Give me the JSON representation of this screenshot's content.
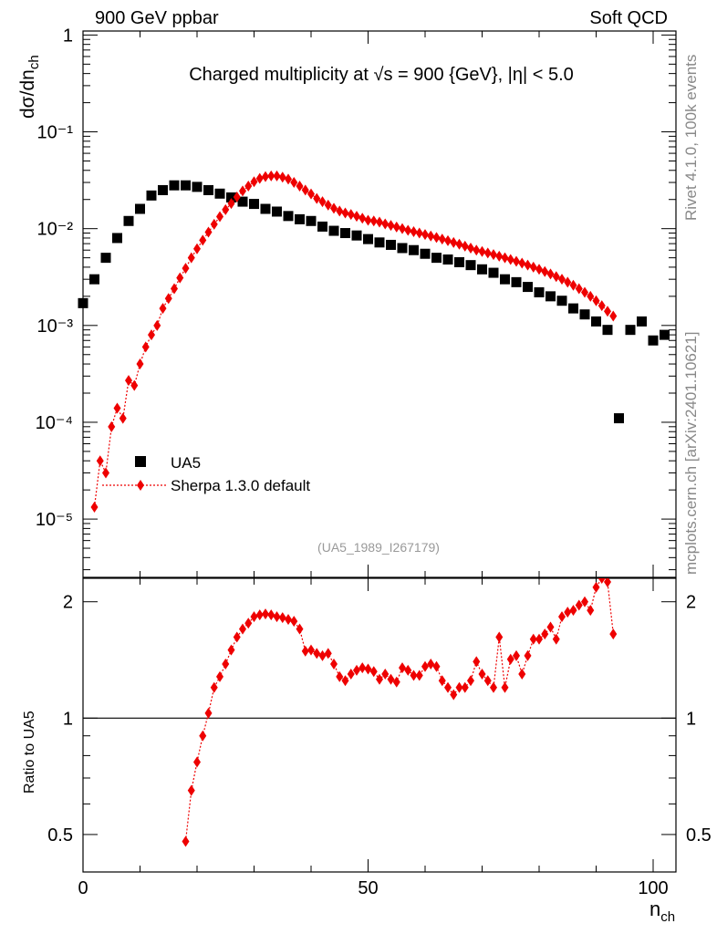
{
  "header": {
    "left_label": "900 GeV ppbar",
    "right_label": "Soft QCD"
  },
  "side_labels": {
    "rivet": "Rivet 4.1.0,  100k events",
    "mcplots": "mcplots.cern.ch [arXiv:2401.10621]"
  },
  "chart_data": {
    "type": "scatter",
    "title": "Charged multiplicity at √s = 900 {GeV}, |η| < 5.0",
    "analysis_id": "(UA5_1989_I267179)",
    "xlabel": "n_ch",
    "ylabel_main": "dσ/dn_ch",
    "ylabel_ratio": "Ratio to UA5",
    "xlim": [
      0,
      104
    ],
    "ylim_main": [
      2.5e-06,
      1.1
    ],
    "ylim_ratio": [
      0.4,
      2.3
    ],
    "yscale_main": "log",
    "yscale_ratio": "log",
    "x_ticks": [
      0,
      50,
      100
    ],
    "y_ticks_main": [
      {
        "value": 1,
        "label": "1"
      },
      {
        "value": 0.1,
        "label": "10⁻¹"
      },
      {
        "value": 0.01,
        "label": "10⁻²"
      },
      {
        "value": 0.001,
        "label": "10⁻³"
      },
      {
        "value": 0.0001,
        "label": "10⁻⁴"
      },
      {
        "value": 1e-05,
        "label": "10⁻⁵"
      }
    ],
    "y_ticks_ratio": [
      {
        "value": 2,
        "label": "2"
      },
      {
        "value": 1,
        "label": "1"
      },
      {
        "value": 0.5,
        "label": "0.5"
      }
    ],
    "legend": [
      {
        "name": "UA5",
        "marker": "square",
        "color": "#000000"
      },
      {
        "name": "Sherpa 1.3.0 default",
        "marker": "diamond",
        "color": "#ee0000"
      }
    ],
    "series": [
      {
        "name": "UA5",
        "color": "#000000",
        "x": [
          0,
          2,
          4,
          6,
          8,
          10,
          12,
          14,
          16,
          18,
          20,
          22,
          24,
          26,
          28,
          30,
          32,
          34,
          36,
          38,
          40,
          42,
          44,
          46,
          48,
          50,
          52,
          54,
          56,
          58,
          60,
          62,
          64,
          66,
          68,
          70,
          72,
          74,
          76,
          78,
          80,
          82,
          84,
          86,
          88,
          90,
          92,
          94,
          96,
          98,
          100,
          102
        ],
        "values": [
          0.0017,
          0.003,
          0.005,
          0.008,
          0.012,
          0.016,
          0.022,
          0.025,
          0.028,
          0.028,
          0.027,
          0.025,
          0.023,
          0.021,
          0.019,
          0.018,
          0.016,
          0.015,
          0.0135,
          0.0125,
          0.012,
          0.0105,
          0.0095,
          0.009,
          0.0085,
          0.0078,
          0.0072,
          0.0068,
          0.0063,
          0.006,
          0.0055,
          0.005,
          0.0048,
          0.0045,
          0.0042,
          0.0038,
          0.0035,
          0.003,
          0.0028,
          0.0025,
          0.0022,
          0.002,
          0.0018,
          0.0015,
          0.0013,
          0.0011,
          0.0009,
          0.00011,
          0.0009,
          0.0011,
          0.0007,
          0.0008
        ]
      },
      {
        "name": "Sherpa 1.3.0 default",
        "color": "#ee0000",
        "x": [
          2,
          3,
          4,
          5,
          6,
          7,
          8,
          9,
          10,
          11,
          12,
          13,
          14,
          15,
          16,
          17,
          18,
          19,
          20,
          21,
          22,
          23,
          24,
          25,
          26,
          27,
          28,
          29,
          30,
          31,
          32,
          33,
          34,
          35,
          36,
          37,
          38,
          39,
          40,
          41,
          42,
          43,
          44,
          45,
          46,
          47,
          48,
          49,
          50,
          51,
          52,
          53,
          54,
          55,
          56,
          57,
          58,
          59,
          60,
          61,
          62,
          63,
          64,
          65,
          66,
          67,
          68,
          69,
          70,
          71,
          72,
          73,
          74,
          75,
          76,
          77,
          78,
          79,
          80,
          81,
          82,
          83,
          84,
          85,
          86,
          87,
          88,
          89,
          90,
          91,
          92,
          93
        ],
        "values": [
          1.33e-05,
          4e-05,
          3e-05,
          9e-05,
          0.00014,
          0.00011,
          0.00027,
          0.00024,
          0.0004,
          0.0006,
          0.0008,
          0.001,
          0.0015,
          0.0019,
          0.0024,
          0.0031,
          0.0039,
          0.005,
          0.0062,
          0.0076,
          0.0092,
          0.0111,
          0.0133,
          0.0157,
          0.0182,
          0.0212,
          0.0245,
          0.0275,
          0.0305,
          0.033,
          0.0345,
          0.035,
          0.035,
          0.034,
          0.0325,
          0.03,
          0.0275,
          0.025,
          0.0228,
          0.0205,
          0.019,
          0.0175,
          0.0162,
          0.0152,
          0.0145,
          0.014,
          0.0134,
          0.0128,
          0.0122,
          0.012,
          0.0117,
          0.0112,
          0.0108,
          0.0104,
          0.01,
          0.0096,
          0.0093,
          0.009,
          0.0087,
          0.0084,
          0.0081,
          0.0078,
          0.0075,
          0.0072,
          0.0069,
          0.0066,
          0.0063,
          0.006,
          0.0058,
          0.0056,
          0.0054,
          0.0052,
          0.005,
          0.0048,
          0.0046,
          0.0044,
          0.0042,
          0.004,
          0.0038,
          0.0036,
          0.0034,
          0.0032,
          0.003,
          0.0028,
          0.0026,
          0.0024,
          0.0022,
          0.002,
          0.0018,
          0.0016,
          0.0014,
          0.00125
        ]
      }
    ],
    "ratio": {
      "reference": 1,
      "x": [
        18,
        19,
        20,
        21,
        22,
        23,
        24,
        25,
        26,
        27,
        28,
        29,
        30,
        31,
        32,
        33,
        34,
        35,
        36,
        37,
        38,
        39,
        40,
        41,
        42,
        43,
        44,
        45,
        46,
        47,
        48,
        49,
        50,
        51,
        52,
        53,
        54,
        55,
        56,
        57,
        58,
        59,
        60,
        61,
        62,
        63,
        64,
        65,
        66,
        67,
        68,
        69,
        70,
        71,
        72,
        73,
        74,
        75,
        76,
        77,
        78,
        79,
        80,
        81,
        82,
        83,
        84,
        85,
        86,
        87,
        88,
        89,
        90,
        91,
        92,
        93
      ],
      "values": [
        0.48,
        0.65,
        0.77,
        0.9,
        1.03,
        1.2,
        1.28,
        1.38,
        1.5,
        1.62,
        1.7,
        1.76,
        1.83,
        1.85,
        1.86,
        1.85,
        1.83,
        1.82,
        1.8,
        1.78,
        1.7,
        1.49,
        1.5,
        1.47,
        1.45,
        1.47,
        1.38,
        1.28,
        1.25,
        1.3,
        1.33,
        1.35,
        1.34,
        1.32,
        1.26,
        1.3,
        1.26,
        1.24,
        1.35,
        1.33,
        1.29,
        1.29,
        1.36,
        1.38,
        1.36,
        1.25,
        1.2,
        1.15,
        1.2,
        1.2,
        1.25,
        1.4,
        1.3,
        1.25,
        1.2,
        1.62,
        1.2,
        1.42,
        1.45,
        1.3,
        1.45,
        1.6,
        1.6,
        1.65,
        1.72,
        1.6,
        1.83,
        1.88,
        1.9,
        1.96,
        2.0,
        1.9,
        2.18,
        2.3,
        2.25,
        1.65
      ]
    }
  }
}
